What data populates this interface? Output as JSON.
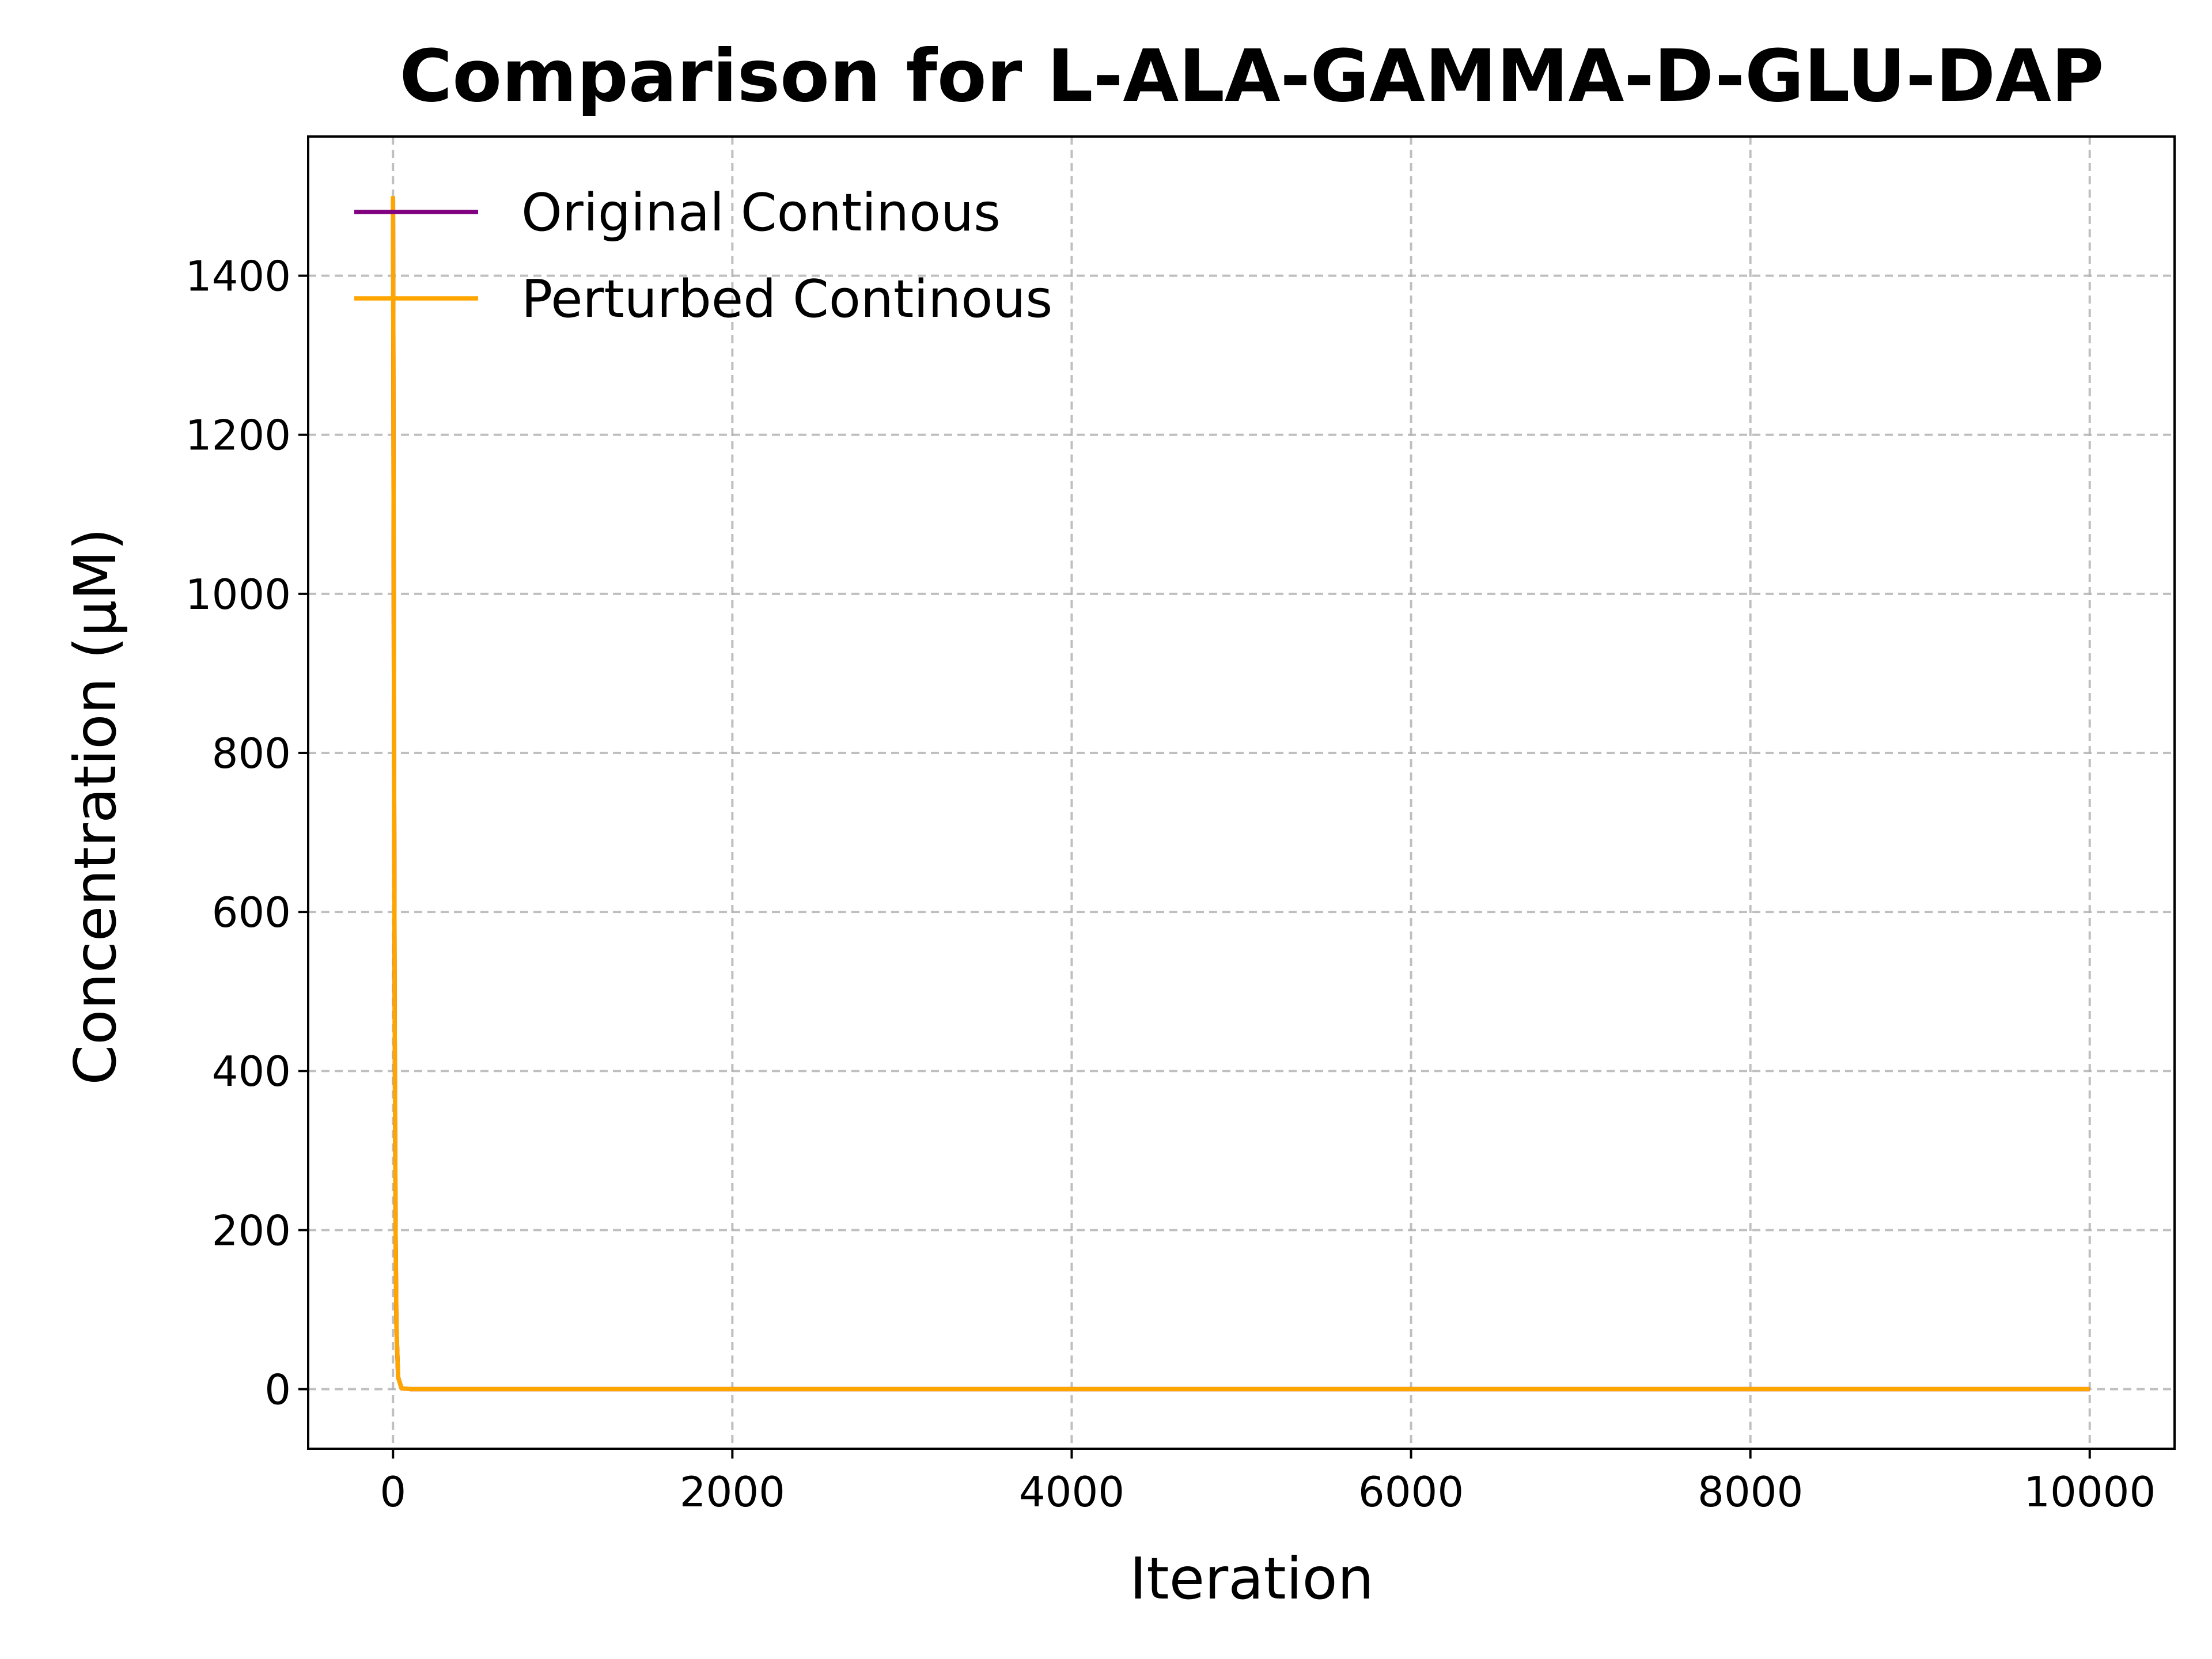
{
  "chart_data": {
    "type": "line",
    "title": "Comparison for L-ALA-GAMMA-D-GLU-DAP",
    "xlabel": "Iteration",
    "ylabel": "Concentration (μM)",
    "xlim": [
      -500,
      10500
    ],
    "ylim": [
      -75,
      1575
    ],
    "xticks": [
      0,
      2000,
      4000,
      6000,
      8000,
      10000
    ],
    "xtick_labels": [
      "0",
      "2000",
      "4000",
      "6000",
      "8000",
      "10000"
    ],
    "yticks": [
      0,
      200,
      400,
      600,
      800,
      1000,
      1200,
      1400
    ],
    "ytick_labels": [
      "0",
      "200",
      "400",
      "600",
      "800",
      "1000",
      "1200",
      "1400"
    ],
    "grid": true,
    "legend_position": "top-left",
    "series": [
      {
        "name": "Original Continous",
        "color": "#800080",
        "x": [
          0,
          2,
          5,
          10,
          15,
          20,
          30,
          50,
          100,
          1000,
          10000
        ],
        "y": [
          1500,
          1300,
          900,
          450,
          200,
          80,
          15,
          1,
          0,
          0,
          0
        ]
      },
      {
        "name": "Perturbed Continous",
        "color": "#ffa500",
        "x": [
          0,
          2,
          5,
          10,
          15,
          20,
          30,
          50,
          100,
          1000,
          10000
        ],
        "y": [
          1500,
          1300,
          900,
          450,
          200,
          80,
          15,
          1,
          0,
          0,
          0
        ]
      }
    ]
  }
}
